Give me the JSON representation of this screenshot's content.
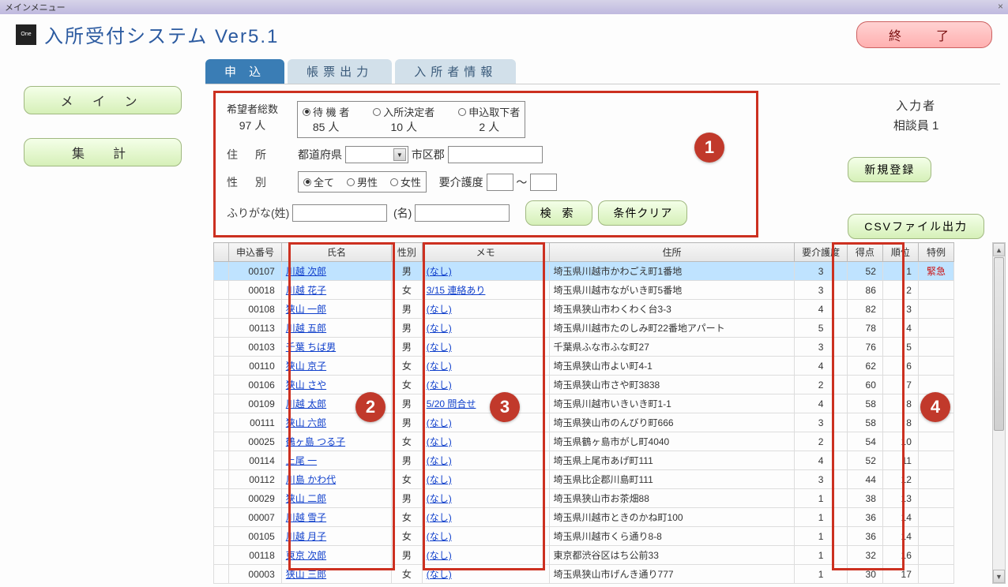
{
  "titlebar": {
    "text": "メインメニュー"
  },
  "header": {
    "title": "入所受付システム Ver5.1",
    "exit": "終　了"
  },
  "leftButtons": {
    "main": "メ イ ン",
    "tally": "集　計"
  },
  "tabs": {
    "apply": "申  込",
    "report": "帳票出力",
    "resident": "入所者情報"
  },
  "filter": {
    "totalLabel": "希望者総数",
    "totalValue": "97 人",
    "waitLabel": "待 機 者",
    "waitValue": "85 人",
    "decidedLabel": "入所決定者",
    "decidedValue": "10 人",
    "withdrawnLabel": "申込取下者",
    "withdrawnValue": "2 人",
    "addressLabel": "住　所",
    "prefLabel": "都道府県",
    "cityLabel": "市区郡",
    "genderLabel": "性　別",
    "genderAll": "全て",
    "genderM": "男性",
    "genderF": "女性",
    "careLabel": "要介護度",
    "tilde": "～",
    "furiSurLabel": "ふりがな(姓)",
    "furiGivLabel": "(名)",
    "searchBtn": "検  索",
    "clearBtn": "条件クリア"
  },
  "side": {
    "userLabel": "入力者",
    "userValue": "相談員  1",
    "newBtn": "新規登録",
    "csvBtn": "CSVファイル出力"
  },
  "columns": {
    "c0": "",
    "c1": "申込番号",
    "c2": "氏名",
    "c3": "性別",
    "c4": "メモ",
    "c5": "住所",
    "c6": "要介護度",
    "c7": "得点",
    "c8": "順位",
    "c9": "特例"
  },
  "rows": [
    {
      "no": "00107",
      "name": "川越 次郎",
      "sex": "男",
      "memo": "(なし)",
      "addr": "埼玉県川越市かわごえ町1番地",
      "care": "3",
      "score": "52",
      "rank": "1",
      "special": "緊急",
      "sel": true
    },
    {
      "no": "00018",
      "name": "川越 花子",
      "sex": "女",
      "memo": "3/15 連絡あり",
      "addr": "埼玉県川越市ながいき町5番地",
      "care": "3",
      "score": "86",
      "rank": "2",
      "special": ""
    },
    {
      "no": "00108",
      "name": "狭山 一郎",
      "sex": "男",
      "memo": "(なし)",
      "addr": "埼玉県狭山市わくわく台3-3",
      "care": "4",
      "score": "82",
      "rank": "3",
      "special": ""
    },
    {
      "no": "00113",
      "name": "川越 五郎",
      "sex": "男",
      "memo": "(なし)",
      "addr": "埼玉県川越市たのしみ町22番地アパート",
      "care": "5",
      "score": "78",
      "rank": "4",
      "special": ""
    },
    {
      "no": "00103",
      "name": "千葉 ちば男",
      "sex": "男",
      "memo": "(なし)",
      "addr": "千葉県ふな市ふな町27",
      "care": "3",
      "score": "76",
      "rank": "5",
      "special": ""
    },
    {
      "no": "00110",
      "name": "狭山 京子",
      "sex": "女",
      "memo": "(なし)",
      "addr": "埼玉県狭山市よい町4-1",
      "care": "4",
      "score": "62",
      "rank": "6",
      "special": ""
    },
    {
      "no": "00106",
      "name": "狭山 さや",
      "sex": "女",
      "memo": "(なし)",
      "addr": "埼玉県狭山市さや町3838",
      "care": "2",
      "score": "60",
      "rank": "7",
      "special": ""
    },
    {
      "no": "00109",
      "name": "川越 太郎",
      "sex": "男",
      "memo": "5/20 問合せ",
      "addr": "埼玉県川越市いきいき町1-1",
      "care": "4",
      "score": "58",
      "rank": "8",
      "special": ""
    },
    {
      "no": "00111",
      "name": "狭山 六郎",
      "sex": "男",
      "memo": "(なし)",
      "addr": "埼玉県狭山市のんびり町666",
      "care": "3",
      "score": "58",
      "rank": "8",
      "special": ""
    },
    {
      "no": "00025",
      "name": "鶴ヶ島 つる子",
      "sex": "女",
      "memo": "(なし)",
      "addr": "埼玉県鶴ヶ島市がし町4040",
      "care": "2",
      "score": "54",
      "rank": "10",
      "special": ""
    },
    {
      "no": "00114",
      "name": "上尾 一",
      "sex": "男",
      "memo": "(なし)",
      "addr": "埼玉県上尾市あげ町111",
      "care": "4",
      "score": "52",
      "rank": "11",
      "special": ""
    },
    {
      "no": "00112",
      "name": "川島 かわ代",
      "sex": "女",
      "memo": "(なし)",
      "addr": "埼玉県比企郡川島町111",
      "care": "3",
      "score": "44",
      "rank": "12",
      "special": ""
    },
    {
      "no": "00029",
      "name": "狭山 二郎",
      "sex": "男",
      "memo": "(なし)",
      "addr": "埼玉県狭山市お茶畑88",
      "care": "1",
      "score": "38",
      "rank": "13",
      "special": ""
    },
    {
      "no": "00007",
      "name": "川越 雪子",
      "sex": "女",
      "memo": "(なし)",
      "addr": "埼玉県川越市ときのかね町100",
      "care": "1",
      "score": "36",
      "rank": "14",
      "special": ""
    },
    {
      "no": "00105",
      "name": "川越 月子",
      "sex": "女",
      "memo": "(なし)",
      "addr": "埼玉県川越市くら通り8-8",
      "care": "1",
      "score": "36",
      "rank": "14",
      "special": ""
    },
    {
      "no": "00118",
      "name": "東京 次郎",
      "sex": "男",
      "memo": "(なし)",
      "addr": "東京都渋谷区はち公前33",
      "care": "1",
      "score": "32",
      "rank": "16",
      "special": ""
    },
    {
      "no": "00003",
      "name": "狭山 三郎",
      "sex": "女",
      "memo": "(なし)",
      "addr": "埼玉県狭山市げんき通り777",
      "care": "1",
      "score": "30",
      "rank": "17",
      "special": ""
    }
  ],
  "callouts": {
    "c1": "1",
    "c2": "2",
    "c3": "3",
    "c4": "4"
  },
  "colors": {
    "accent": "#cc3020",
    "link": "#1040cc",
    "tabActive": "#3a7db5",
    "btnGreen": "#d6f0b8"
  }
}
